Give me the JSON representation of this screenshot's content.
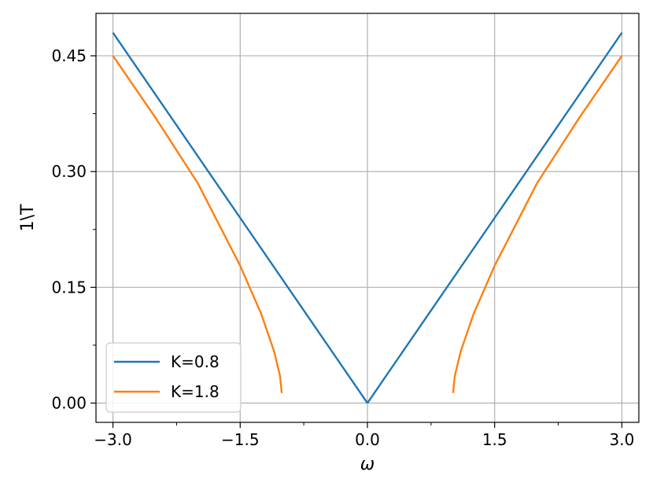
{
  "chart_data": {
    "type": "line",
    "title": "",
    "xlabel": "ω",
    "ylabel": "1\\T",
    "xlim": [
      -3.2,
      3.2
    ],
    "ylim": [
      -0.025,
      0.505
    ],
    "xticks": [
      -3.0,
      -1.5,
      0.0,
      1.5,
      3.0
    ],
    "xtick_labels": [
      "−3.0",
      "−1.5",
      "0.0",
      "1.5",
      "3.0"
    ],
    "xminor": [
      -2.25,
      -0.75,
      0.75,
      2.25
    ],
    "yticks": [
      0.0,
      0.15,
      0.3,
      0.45
    ],
    "ytick_labels": [
      "0.00",
      "0.15",
      "0.30",
      "0.45"
    ],
    "yminor": [
      0.075,
      0.225,
      0.375
    ],
    "grid": true,
    "legend_position": "lower-left",
    "series": [
      {
        "name": "K=0.8",
        "color": "#1f77b4",
        "segments": [
          {
            "x": [
              -3.0,
              -1.5,
              0.0
            ],
            "y": [
              0.48,
              0.24,
              0.0
            ]
          },
          {
            "x": [
              0.0,
              1.5,
              3.0
            ],
            "y": [
              0.0,
              0.24,
              0.48
            ]
          }
        ]
      },
      {
        "name": "K=1.8",
        "color": "#ff7f0e",
        "segments": [
          {
            "x": [
              -3.0,
              -2.5,
              -2.0,
              -1.5,
              -1.25,
              -1.1,
              -1.03,
              -1.01
            ],
            "y": [
              0.45,
              0.37,
              0.285,
              0.178,
              0.115,
              0.067,
              0.035,
              0.013
            ]
          },
          {
            "x": [
              1.01,
              1.03,
              1.1,
              1.25,
              1.5,
              2.0,
              2.5,
              3.0
            ],
            "y": [
              0.013,
              0.035,
              0.067,
              0.115,
              0.178,
              0.285,
              0.37,
              0.45
            ]
          }
        ]
      }
    ]
  }
}
